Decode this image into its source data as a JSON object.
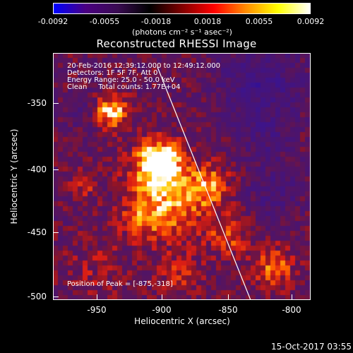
{
  "colorbar": {
    "tick_labels": [
      "-0.0092",
      "-0.0055",
      "-0.0018",
      "0.0018",
      "0.0055",
      "0.0092"
    ],
    "unit_label": "(photons cm⁻² s⁻¹ asec⁻²)",
    "colors": [
      "#0000ff",
      "#4b0082",
      "#3a0b52",
      "#000000",
      "#800000",
      "#ff0000",
      "#ff8c00",
      "#ffff00",
      "#ffffff"
    ]
  },
  "title": "Reconstructed RHESSI Image",
  "info": {
    "line1": "20-Feb-2016 12:39:12.000 to 12:49:12.000",
    "line2": "Detectors: 1F 5F 7F, Att 0",
    "line3": "Energy Range: 25.0 - 50.0 keV",
    "line4": "Clean     Total counts: 1.77E+04",
    "peak": "Position of Peak = [-875,-318]"
  },
  "axes": {
    "xlabel": "Heliocentric X (arcsec)",
    "ylabel": "Heliocentric Y (arcsec)",
    "xticks": [
      "-950",
      "-900",
      "-850",
      "-800"
    ],
    "yticks": [
      "-350",
      "-400",
      "-450",
      "-500"
    ],
    "xlim": [
      -985,
      -790
    ],
    "ylim": [
      -505,
      -318
    ]
  },
  "timestamp": "15-Oct-2017 03:55"
}
